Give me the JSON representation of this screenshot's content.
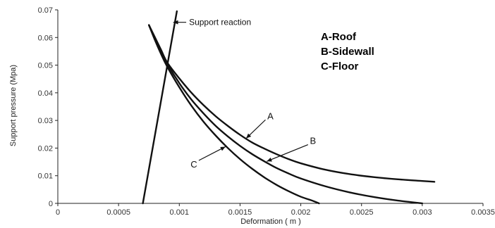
{
  "chart_data": {
    "type": "line",
    "title": "",
    "xlabel": "Deformation ( m )",
    "ylabel": "Support pressure (Mpa)",
    "xlim": [
      0,
      0.0035
    ],
    "ylim": [
      0,
      0.07
    ],
    "x_ticks": [
      0,
      0.0005,
      0.001,
      0.0015,
      0.002,
      0.0025,
      0.003,
      0.0035
    ],
    "x_tick_labels": [
      "0",
      "0.0005",
      "0.001",
      "0.0015",
      "0.002",
      "0.0025",
      "0.003",
      "0.0035"
    ],
    "y_ticks": [
      0,
      0.01,
      0.02,
      0.03,
      0.04,
      0.05,
      0.06,
      0.07
    ],
    "y_tick_labels": [
      "0",
      "0.01",
      "0.02",
      "0.03",
      "0.04",
      "0.05",
      "0.06",
      "0.07"
    ],
    "grid": false,
    "legend_lines": [
      "A-Roof",
      "B-Sidewall",
      "C-Floor"
    ],
    "series": [
      {
        "name": "A",
        "color": "#111111",
        "points": [
          [
            0.00075,
            0.0645
          ],
          [
            0.0008,
            0.06
          ],
          [
            0.00085,
            0.0555
          ],
          [
            0.0009,
            0.051
          ],
          [
            0.001,
            0.0452
          ],
          [
            0.0011,
            0.04
          ],
          [
            0.0012,
            0.0355
          ],
          [
            0.0013,
            0.0315
          ],
          [
            0.0014,
            0.028
          ],
          [
            0.0015,
            0.0248
          ],
          [
            0.0016,
            0.022
          ],
          [
            0.0017,
            0.0198
          ],
          [
            0.0018,
            0.0178
          ],
          [
            0.0019,
            0.016
          ],
          [
            0.002,
            0.0145
          ],
          [
            0.0022,
            0.0122
          ],
          [
            0.0024,
            0.0106
          ],
          [
            0.0026,
            0.0095
          ],
          [
            0.0028,
            0.0087
          ],
          [
            0.003,
            0.0081
          ],
          [
            0.0031,
            0.0078
          ]
        ]
      },
      {
        "name": "B",
        "color": "#111111",
        "points": [
          [
            0.00075,
            0.0645
          ],
          [
            0.0008,
            0.0595
          ],
          [
            0.00085,
            0.0548
          ],
          [
            0.0009,
            0.0505
          ],
          [
            0.001,
            0.0435
          ],
          [
            0.0011,
            0.0375
          ],
          [
            0.0012,
            0.0325
          ],
          [
            0.0013,
            0.028
          ],
          [
            0.0014,
            0.0242
          ],
          [
            0.0015,
            0.0208
          ],
          [
            0.0016,
            0.0178
          ],
          [
            0.0017,
            0.0152
          ],
          [
            0.0018,
            0.0128
          ],
          [
            0.0019,
            0.0108
          ],
          [
            0.002,
            0.009
          ],
          [
            0.0022,
            0.0062
          ],
          [
            0.0024,
            0.004
          ],
          [
            0.0026,
            0.0023
          ],
          [
            0.0028,
            0.001
          ],
          [
            0.003,
            0.0
          ]
        ]
      },
      {
        "name": "C",
        "color": "#111111",
        "points": [
          [
            0.00075,
            0.0645
          ],
          [
            0.0008,
            0.059
          ],
          [
            0.00085,
            0.054
          ],
          [
            0.0009,
            0.0495
          ],
          [
            0.001,
            0.042
          ],
          [
            0.0011,
            0.0353
          ],
          [
            0.0012,
            0.0295
          ],
          [
            0.0013,
            0.0245
          ],
          [
            0.0014,
            0.02
          ],
          [
            0.0015,
            0.016
          ],
          [
            0.0016,
            0.0125
          ],
          [
            0.0017,
            0.0094
          ],
          [
            0.0018,
            0.0067
          ],
          [
            0.0019,
            0.0044
          ],
          [
            0.002,
            0.0024
          ],
          [
            0.0021,
            0.0009
          ],
          [
            0.00215,
            0.0
          ]
        ]
      },
      {
        "name": "Support reaction",
        "color": "#111111",
        "points": [
          [
            0.0007,
            0.0
          ],
          [
            0.00098,
            0.0695
          ]
        ]
      }
    ],
    "annotations": [
      {
        "text": "Support reaction",
        "x": 0.00108,
        "y": 0.0655,
        "pointer_to": [
          0.00095,
          0.0655
        ]
      },
      {
        "text": "A",
        "x": 0.00175,
        "y": 0.0315,
        "pointer_to": [
          0.00155,
          0.0235
        ]
      },
      {
        "text": "B",
        "x": 0.0021,
        "y": 0.0225,
        "pointer_to": [
          0.00172,
          0.0152
        ]
      },
      {
        "text": "C",
        "x": 0.00112,
        "y": 0.014,
        "pointer_to": [
          0.00138,
          0.0205
        ]
      }
    ]
  }
}
